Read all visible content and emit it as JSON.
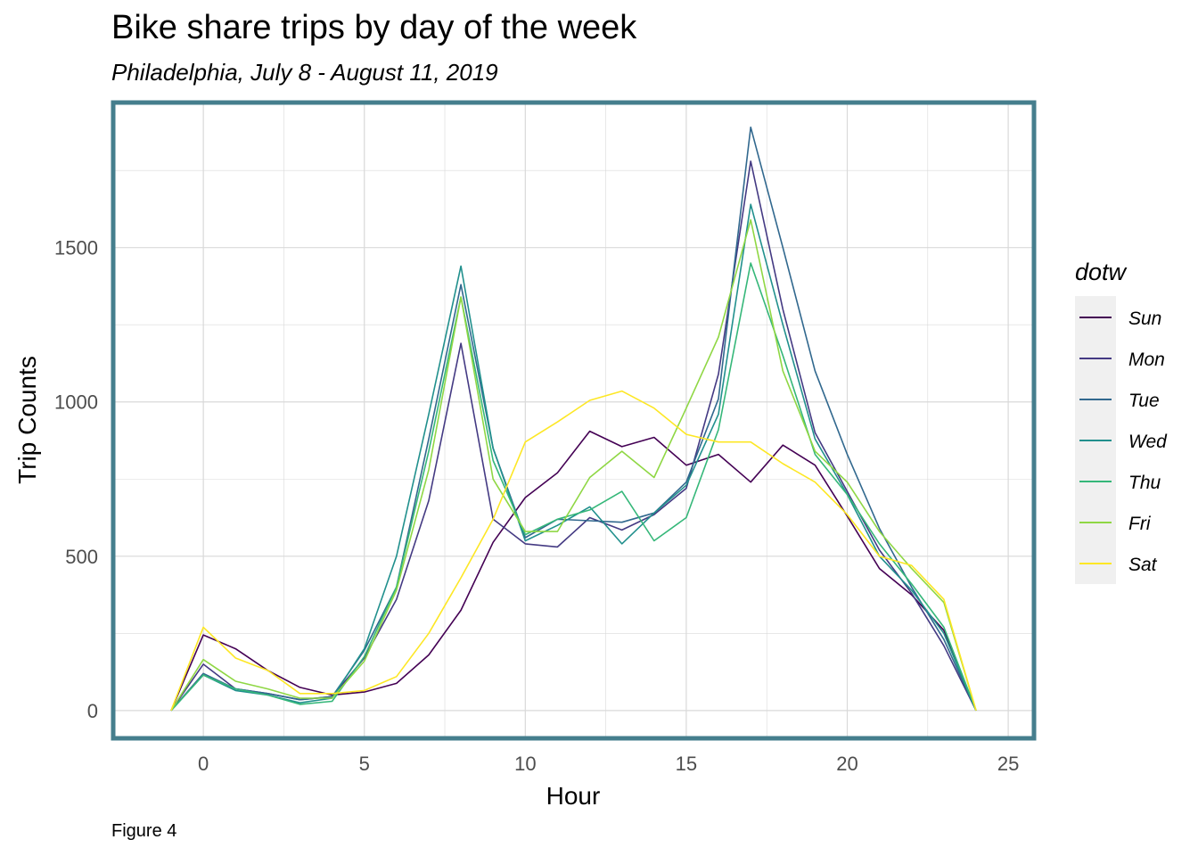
{
  "title": "Bike share trips by day of the week",
  "subtitle": "Philadelphia, July 8 - August 11, 2019",
  "caption": "Figure 4",
  "colors": {
    "panel_border": "#457e8d",
    "grid": "#d9d9d9",
    "legend_bg": "#f0f0f0"
  },
  "chart_data": {
    "type": "line",
    "title": "Bike share trips by day of the week",
    "subtitle": "Philadelphia, July 8 - August 11, 2019",
    "xlabel": "Hour",
    "ylabel": "Trip Counts",
    "xlim": [
      -2.8,
      25.8
    ],
    "ylim": [
      -90,
      1970
    ],
    "xticks": [
      0,
      5,
      10,
      15,
      20,
      25
    ],
    "yticks": [
      0,
      500,
      1000,
      1500
    ],
    "grid": true,
    "legend": {
      "title": "dotw",
      "position": "right"
    },
    "x": [
      -1,
      0,
      1,
      2,
      3,
      4,
      5,
      6,
      7,
      8,
      9,
      10,
      11,
      12,
      13,
      14,
      15,
      16,
      17,
      18,
      19,
      20,
      21,
      22,
      23,
      24
    ],
    "series": [
      {
        "name": "Sun",
        "color": "#440154",
        "values": [
          0,
          245,
          200,
          130,
          75,
          50,
          60,
          88,
          180,
          325,
          545,
          690,
          770,
          905,
          855,
          885,
          795,
          830,
          740,
          860,
          795,
          630,
          460,
          375,
          260,
          0
        ]
      },
      {
        "name": "Mon",
        "color": "#443a83",
        "values": [
          0,
          150,
          70,
          55,
          35,
          45,
          170,
          360,
          680,
          1190,
          620,
          540,
          530,
          625,
          585,
          635,
          720,
          1090,
          1780,
          1300,
          900,
          710,
          520,
          380,
          210,
          0
        ]
      },
      {
        "name": "Tue",
        "color": "#31688e",
        "values": [
          0,
          120,
          70,
          55,
          35,
          45,
          195,
          400,
          880,
          1380,
          850,
          560,
          620,
          615,
          610,
          640,
          740,
          1010,
          1890,
          1500,
          1100,
          830,
          590,
          400,
          230,
          0
        ]
      },
      {
        "name": "Wed",
        "color": "#21908d",
        "values": [
          0,
          115,
          65,
          50,
          25,
          40,
          200,
          500,
          960,
          1440,
          850,
          550,
          600,
          660,
          540,
          640,
          730,
          960,
          1640,
          1250,
          880,
          700,
          500,
          390,
          250,
          0
        ]
      },
      {
        "name": "Thu",
        "color": "#35b779",
        "values": [
          0,
          115,
          70,
          50,
          20,
          30,
          175,
          400,
          840,
          1340,
          810,
          570,
          620,
          650,
          710,
          550,
          625,
          910,
          1450,
          1150,
          830,
          700,
          540,
          410,
          270,
          0
        ]
      },
      {
        "name": "Fri",
        "color": "#8fd744",
        "values": [
          0,
          165,
          95,
          70,
          40,
          40,
          160,
          390,
          780,
          1340,
          750,
          580,
          580,
          755,
          840,
          755,
          980,
          1210,
          1590,
          1100,
          840,
          740,
          580,
          460,
          350,
          0
        ]
      },
      {
        "name": "Sat",
        "color": "#fde725",
        "values": [
          0,
          270,
          170,
          130,
          55,
          55,
          65,
          110,
          250,
          430,
          620,
          870,
          935,
          1005,
          1035,
          980,
          895,
          870,
          870,
          800,
          740,
          635,
          500,
          470,
          360,
          0
        ]
      }
    ]
  }
}
